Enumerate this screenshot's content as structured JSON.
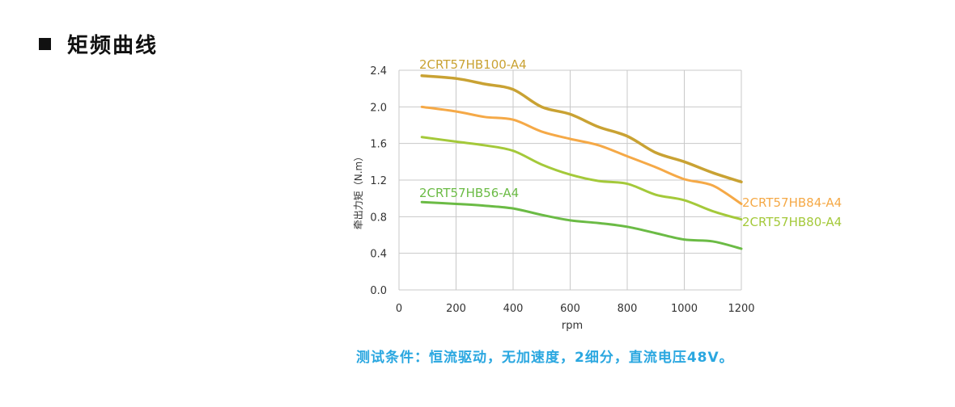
{
  "heading": {
    "title": "矩频曲线"
  },
  "caption": "测试条件：恒流驱动，无加速度，2细分，直流电压48V。",
  "chart_data": {
    "type": "line",
    "xlabel": "rpm",
    "ylabel": "牵出力矩（N.m）",
    "xlim": [
      0,
      1200
    ],
    "ylim": [
      0,
      2.4
    ],
    "xticks": [
      "0",
      "200",
      "400",
      "600",
      "800",
      "1000",
      "1200"
    ],
    "yticks": [
      "0.0",
      "0.4",
      "0.8",
      "1.2",
      "1.6",
      "2.0",
      "2.4"
    ],
    "grid": true,
    "series": [
      {
        "name": "2CRT57HB100-A4",
        "color": "#c9a233",
        "x": [
          80,
          200,
          300,
          400,
          500,
          600,
          700,
          800,
          900,
          1000,
          1100,
          1200
        ],
        "y": [
          2.34,
          2.31,
          2.25,
          2.19,
          2.0,
          1.92,
          1.78,
          1.68,
          1.5,
          1.4,
          1.28,
          1.18
        ]
      },
      {
        "name": "2CRT57HB84-A4",
        "color": "#f5a947",
        "x": [
          80,
          200,
          300,
          400,
          500,
          600,
          700,
          800,
          900,
          1000,
          1100,
          1200
        ],
        "y": [
          2.0,
          1.95,
          1.89,
          1.86,
          1.73,
          1.65,
          1.58,
          1.46,
          1.34,
          1.21,
          1.14,
          0.94
        ]
      },
      {
        "name": "2CRT57HB80-A4",
        "color": "#a4c93a",
        "x": [
          80,
          200,
          300,
          400,
          500,
          600,
          700,
          800,
          900,
          1000,
          1100,
          1200
        ],
        "y": [
          1.67,
          1.62,
          1.58,
          1.52,
          1.37,
          1.26,
          1.19,
          1.16,
          1.04,
          0.98,
          0.86,
          0.77
        ]
      },
      {
        "name": "2CRT57HB56-A4",
        "color": "#6bbb45",
        "x": [
          80,
          200,
          300,
          400,
          500,
          600,
          700,
          800,
          900,
          1000,
          1100,
          1200
        ],
        "y": [
          0.96,
          0.94,
          0.92,
          0.89,
          0.82,
          0.76,
          0.73,
          0.69,
          0.62,
          0.55,
          0.53,
          0.45
        ]
      }
    ]
  }
}
